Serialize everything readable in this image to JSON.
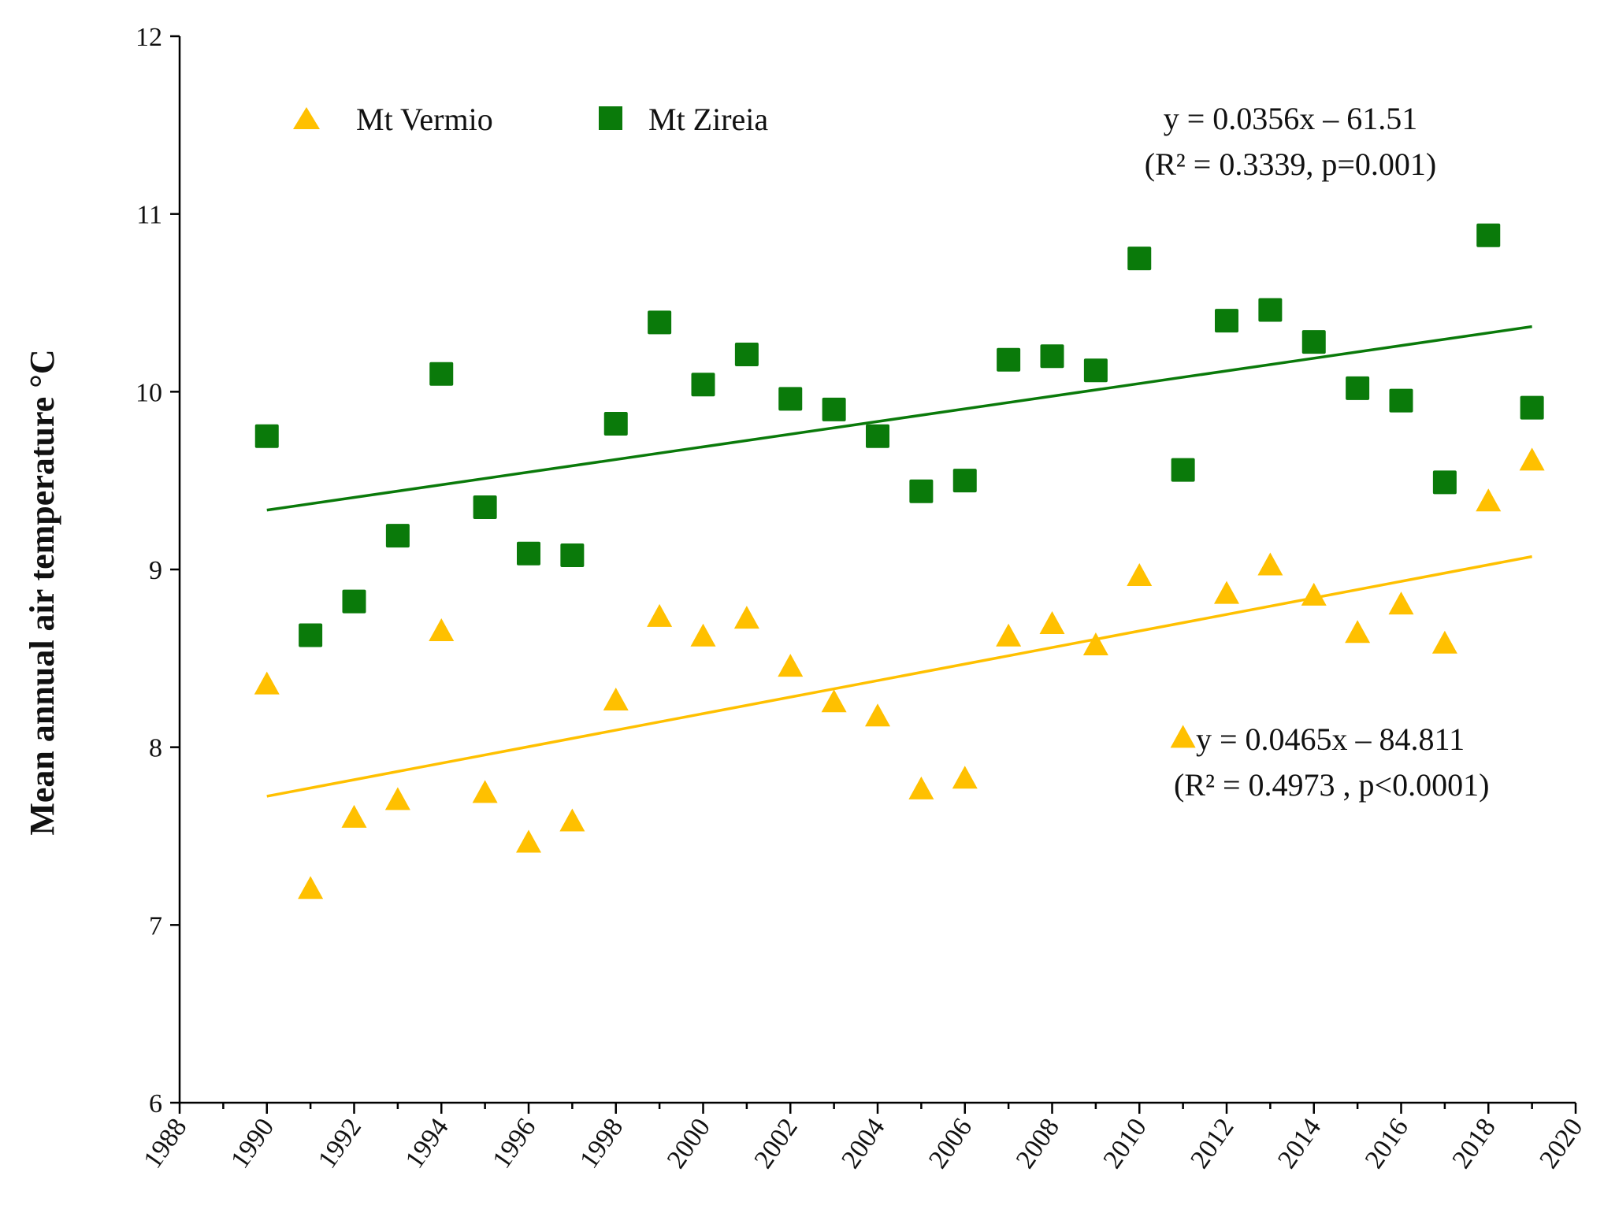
{
  "chart_data": {
    "type": "scatter",
    "title": "",
    "xlabel": "",
    "ylabel": "Mean annual air temperature °C",
    "xlim": [
      1988,
      2020
    ],
    "ylim": [
      6,
      12
    ],
    "x_ticks": [
      1988,
      1990,
      1992,
      1994,
      1996,
      1998,
      2000,
      2002,
      2004,
      2006,
      2008,
      2010,
      2012,
      2014,
      2016,
      2018,
      2020
    ],
    "y_ticks": [
      6,
      7,
      8,
      9,
      10,
      11,
      12
    ],
    "grid": false,
    "legend_position": "top-left",
    "x": [
      1990,
      1991,
      1992,
      1993,
      1994,
      1995,
      1996,
      1997,
      1998,
      1999,
      2000,
      2001,
      2002,
      2003,
      2004,
      2005,
      2006,
      2007,
      2008,
      2009,
      2010,
      2011,
      2012,
      2013,
      2014,
      2015,
      2016,
      2017,
      2018,
      2019
    ],
    "series": [
      {
        "name": "Mt Vermio",
        "marker": "triangle",
        "color": "#FFC000",
        "values": [
          8.35,
          7.2,
          7.6,
          7.7,
          8.65,
          7.74,
          7.46,
          7.58,
          8.26,
          8.73,
          8.62,
          8.72,
          8.45,
          8.25,
          8.17,
          7.76,
          7.82,
          8.62,
          8.69,
          8.57,
          8.96,
          8.05,
          8.86,
          9.02,
          8.85,
          8.64,
          8.8,
          8.58,
          9.38,
          9.61
        ],
        "trendline": {
          "slope": 0.0465,
          "intercept": -84.811,
          "x_range": [
            1990,
            2019
          ]
        },
        "equation": "y = 0.0465x – 84.811",
        "stats": "(R² = 0.4973 , p<0.0001)"
      },
      {
        "name": "Mt Zireia",
        "marker": "square",
        "color": "#0A7A0A",
        "values": [
          9.75,
          8.63,
          8.82,
          9.19,
          10.1,
          9.35,
          9.09,
          9.08,
          9.82,
          10.39,
          10.04,
          10.21,
          9.96,
          9.9,
          9.75,
          9.44,
          9.5,
          10.18,
          10.2,
          10.12,
          10.75,
          9.56,
          10.4,
          10.46,
          10.28,
          10.02,
          9.95,
          9.49,
          10.88,
          9.91
        ],
        "trendline": {
          "slope": 0.0356,
          "intercept": -61.51,
          "x_range": [
            1990,
            2019
          ]
        },
        "equation": "y = 0.0356x – 61.51",
        "stats": "(R² = 0.3339, p=0.001)"
      }
    ],
    "colors": {
      "axis": "#000000",
      "trend_vermio": "#FFC000",
      "trend_zireia": "#0A7A0A"
    }
  }
}
